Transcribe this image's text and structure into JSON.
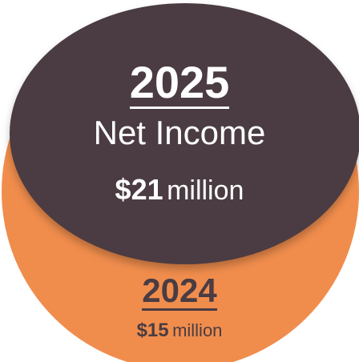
{
  "colors": {
    "dark_circle": "#4a3c42",
    "orange_circle": "#f08d4d",
    "text_light": "#ffffff",
    "text_dark": "#4a3c42"
  },
  "current": {
    "year": "2025",
    "label": "Net Income",
    "amount": "$21",
    "unit": "million"
  },
  "previous": {
    "year": "2024",
    "amount": "$15",
    "unit": "million"
  }
}
